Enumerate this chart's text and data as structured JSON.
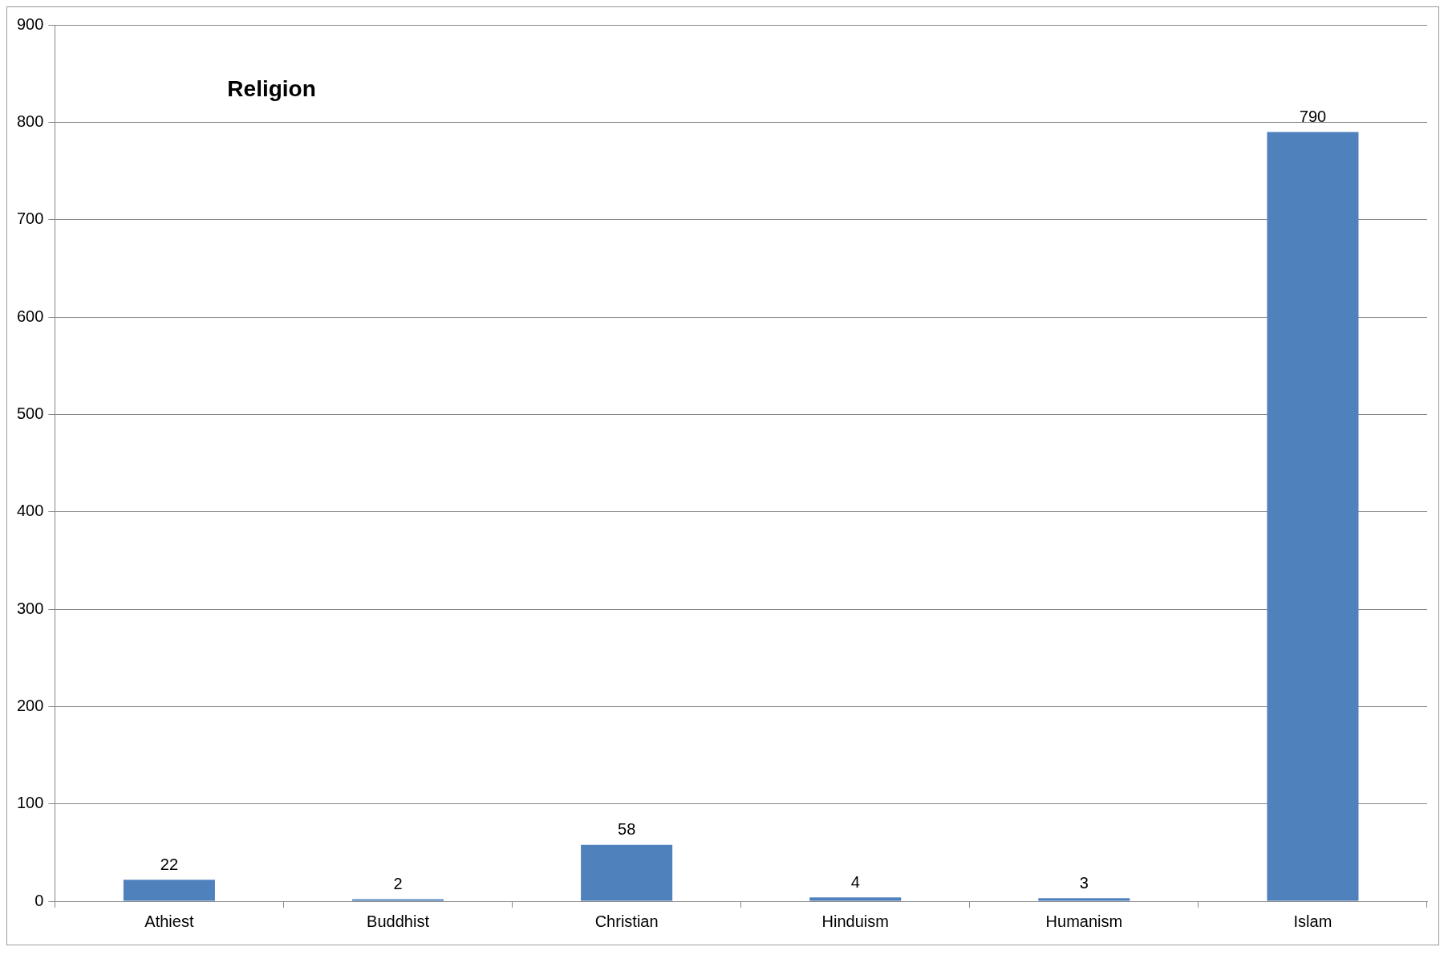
{
  "chart_data": {
    "type": "bar",
    "title": "Religion",
    "categories": [
      "Athiest",
      "Buddhist",
      "Christian",
      "Hinduism",
      "Humanism",
      "Islam"
    ],
    "values": [
      22,
      2,
      58,
      4,
      3,
      790
    ],
    "color": "#4f81bd",
    "ylim": [
      0,
      900
    ],
    "yticks": [
      0,
      100,
      200,
      300,
      400,
      500,
      600,
      700,
      800,
      900
    ],
    "grid": "y",
    "data_labels": true,
    "legend": false
  }
}
